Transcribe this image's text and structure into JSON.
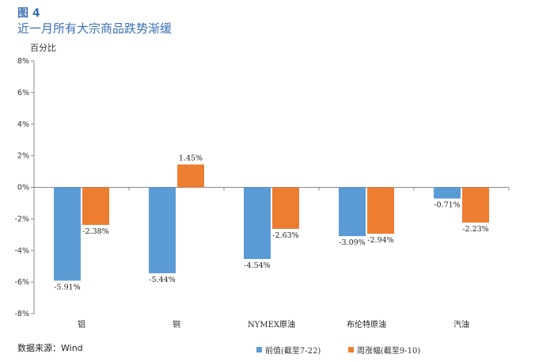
{
  "figure": {
    "label": "图 4",
    "title": "近一月所有大宗商品跌势渐缓",
    "unit": "百分比",
    "source": "数据来源：Wind"
  },
  "chart_data": {
    "type": "bar",
    "title": "近一月所有大宗商品跌势渐缓",
    "ylabel": "百分比",
    "xlabel": "",
    "ylim": [
      -8,
      8
    ],
    "yticks": [
      8,
      6,
      4,
      2,
      0,
      -2,
      -4,
      -6,
      -8
    ],
    "ytick_labels": [
      "8%",
      "6%",
      "4%",
      "2%",
      "0%",
      "-2%",
      "-4%",
      "-6%",
      "-8%"
    ],
    "categories": [
      "铝",
      "铜",
      "NYMEX原油",
      "布伦特原油",
      "汽油"
    ],
    "series": [
      {
        "name": "前值(截至7-22)",
        "color": "#5b9bd5",
        "values": [
          -5.91,
          -5.44,
          -4.54,
          -3.09,
          -0.71
        ],
        "labels": [
          "-5.91%",
          "-5.44%",
          "-4.54%",
          "-3.09%",
          "-0.71%"
        ]
      },
      {
        "name": "周涨幅(截至9-10)",
        "color": "#ed7d31",
        "values": [
          -2.38,
          1.45,
          -2.63,
          -2.94,
          -2.23
        ],
        "labels": [
          "-2.38%",
          "1.45%",
          "-2.63%",
          "-2.94%",
          "-2.23%"
        ]
      }
    ],
    "grid": false,
    "legend_position": "bottom-right"
  }
}
